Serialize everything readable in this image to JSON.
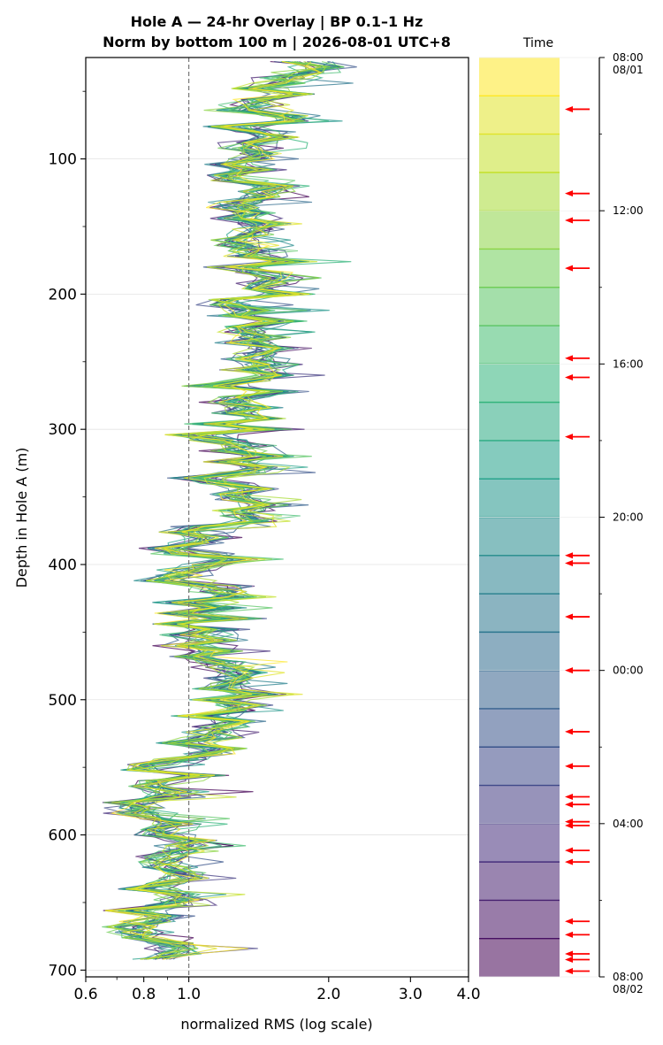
{
  "chart_data": [
    {
      "type": "line",
      "title_line1": "Hole A — 24-hr Overlay  |  BP 0.1–1 Hz",
      "title_line2": "Norm by bottom 100 m  |  2026-08-01 UTC+8",
      "xlabel": "normalized RMS  (log scale)",
      "ylabel": "Depth in Hole A (m)",
      "x_scale": "log",
      "xlim": [
        0.6,
        4.0
      ],
      "ylim": [
        705,
        25
      ],
      "x_ticks": [
        0.6,
        0.8,
        1.0,
        2.0,
        3.0,
        4.0
      ],
      "x_tick_labels": [
        "0.6",
        "0.8",
        "1.0",
        "2.0",
        "3.0",
        "4.0"
      ],
      "y_ticks": [
        100,
        200,
        300,
        400,
        500,
        600,
        700
      ],
      "y_tick_labels": [
        "100",
        "200",
        "300",
        "400",
        "500",
        "600",
        "700"
      ],
      "reference_line_x": 1.0,
      "grid": "horizontal",
      "series_count": 24,
      "depth_start": 28,
      "depth_end": 695,
      "depth_step": 4,
      "color_ramp": "viridis",
      "profile_breakpoints": [
        [
          28,
          1.75
        ],
        [
          60,
          1.45
        ],
        [
          100,
          1.35
        ],
        [
          150,
          1.4
        ],
        [
          190,
          1.35
        ],
        [
          260,
          1.4
        ],
        [
          330,
          1.3
        ],
        [
          350,
          1.25
        ],
        [
          380,
          1.08
        ],
        [
          430,
          1.05
        ],
        [
          480,
          1.12
        ],
        [
          500,
          1.22
        ],
        [
          530,
          1.18
        ],
        [
          545,
          0.92
        ],
        [
          600,
          0.9
        ],
        [
          650,
          0.88
        ],
        [
          695,
          0.85
        ]
      ]
    },
    {
      "type": "heatmap",
      "label": "Time",
      "tick_labels": [
        {
          "hour": 0,
          "line1": "08:00",
          "line2": "08/01"
        },
        {
          "hour": 4,
          "line1": "12:00",
          "line2": ""
        },
        {
          "hour": 8,
          "line1": "16:00",
          "line2": ""
        },
        {
          "hour": 12,
          "line1": "20:00",
          "line2": ""
        },
        {
          "hour": 16,
          "line1": "00:00",
          "line2": ""
        },
        {
          "hour": 20,
          "line1": "04:00",
          "line2": ""
        },
        {
          "hour": 24,
          "line1": "08:00",
          "line2": "08/02"
        }
      ],
      "bands": 24,
      "event_marker_color": "#ff0000",
      "event_hours": [
        1.35,
        3.55,
        4.25,
        5.5,
        7.85,
        8.35,
        9.9,
        13.0,
        13.2,
        14.6,
        16.0,
        17.6,
        18.5,
        19.3,
        19.5,
        19.95,
        20.05,
        20.7,
        21.0,
        22.55,
        22.9,
        23.4,
        23.55,
        23.85
      ]
    }
  ]
}
